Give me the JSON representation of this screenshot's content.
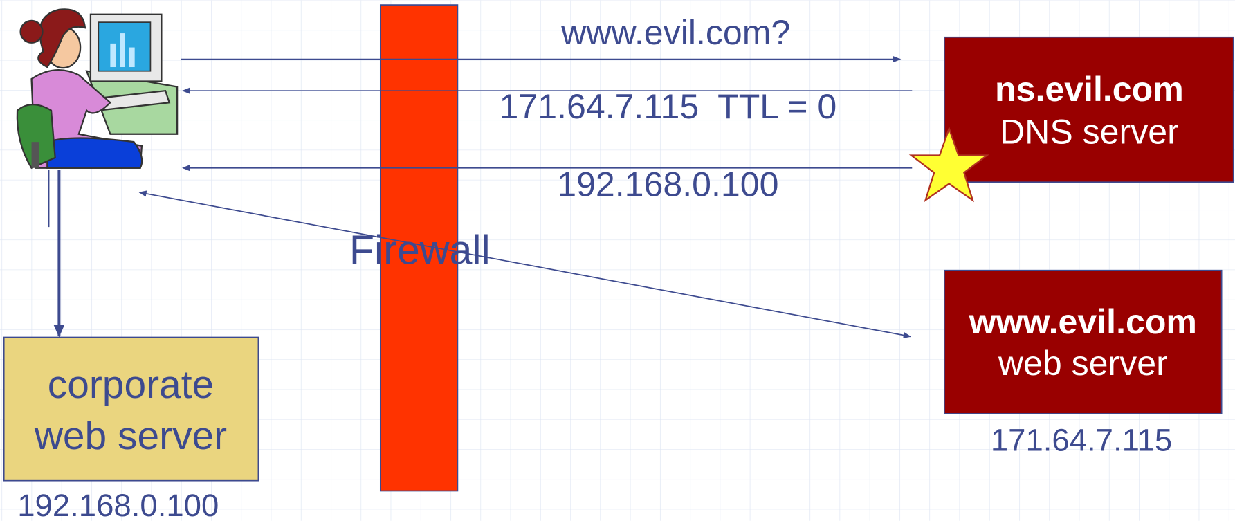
{
  "messages": [
    {
      "label": "www.evil.com?"
    },
    {
      "label": "171.64.7.115  TTL = 0"
    },
    {
      "label": "192.168.0.100"
    }
  ],
  "firewall": {
    "label": "Firewall"
  },
  "nodes": [
    {
      "title": "ns.evil.com",
      "subtitle": "DNS server"
    },
    {
      "title": "www.evil.com",
      "subtitle": "web server",
      "address": "171.64.7.115"
    },
    {
      "title": "corporate",
      "subtitle": "web server",
      "address": "192.168.0.100"
    }
  ]
}
